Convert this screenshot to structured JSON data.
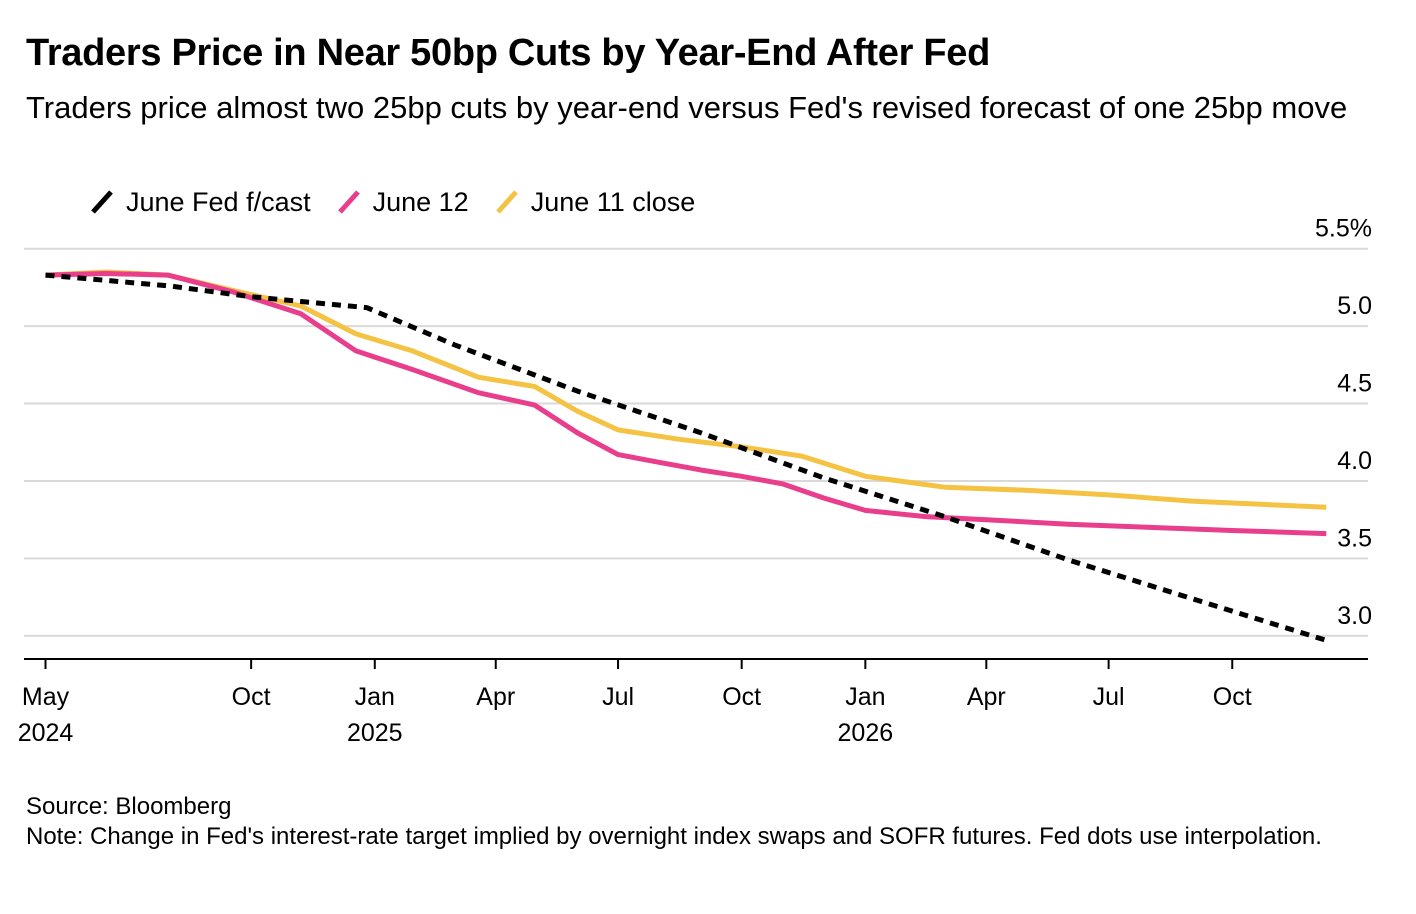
{
  "chart_data": {
    "type": "line",
    "title": "Traders Price in Near 50bp Cuts by Year-End After Fed",
    "subtitle": "Traders price almost two 25bp cuts by year-end versus Fed's revised forecast of one 25bp move",
    "ylabel": "",
    "xlabel": "",
    "y_unit": "%",
    "ylim": [
      2.85,
      5.55
    ],
    "yticks": [
      {
        "value": 5.5,
        "label": "5.5%"
      },
      {
        "value": 5.0,
        "label": "5.0"
      },
      {
        "value": 4.5,
        "label": "4.5"
      },
      {
        "value": 4.0,
        "label": "4.0"
      },
      {
        "value": 3.5,
        "label": "3.5"
      },
      {
        "value": 3.0,
        "label": "3.0"
      }
    ],
    "xlim": [
      "2024-04-15",
      "2027-01-10"
    ],
    "xticks": [
      {
        "date": "2024-05-01",
        "label": "May",
        "year": "2024"
      },
      {
        "date": "2024-10-01",
        "label": "Oct",
        "year": ""
      },
      {
        "date": "2025-01-01",
        "label": "Jan",
        "year": "2025"
      },
      {
        "date": "2025-04-01",
        "label": "Apr",
        "year": ""
      },
      {
        "date": "2025-07-01",
        "label": "Jul",
        "year": ""
      },
      {
        "date": "2025-10-01",
        "label": "Oct",
        "year": ""
      },
      {
        "date": "2026-01-01",
        "label": "Jan",
        "year": "2026"
      },
      {
        "date": "2026-04-01",
        "label": "Apr",
        "year": ""
      },
      {
        "date": "2026-07-01",
        "label": "Jul",
        "year": ""
      },
      {
        "date": "2026-10-01",
        "label": "Oct",
        "year": ""
      }
    ],
    "grid": true,
    "legend_position": "top-left",
    "series": [
      {
        "name": "June Fed f/cast",
        "color": "#000000",
        "dash": true,
        "points": [
          {
            "x": "2024-05-01",
            "y": 5.33
          },
          {
            "x": "2024-08-01",
            "y": 5.26
          },
          {
            "x": "2024-10-01",
            "y": 5.19
          },
          {
            "x": "2024-12-01",
            "y": 5.14
          },
          {
            "x": "2024-12-26",
            "y": 5.12
          },
          {
            "x": "2025-03-01",
            "y": 4.88
          },
          {
            "x": "2025-06-01",
            "y": 4.58
          },
          {
            "x": "2025-09-01",
            "y": 4.31
          },
          {
            "x": "2025-12-01",
            "y": 4.02
          },
          {
            "x": "2026-03-01",
            "y": 3.77
          },
          {
            "x": "2026-06-01",
            "y": 3.49
          },
          {
            "x": "2026-09-01",
            "y": 3.24
          },
          {
            "x": "2026-12-10",
            "y": 2.97
          }
        ]
      },
      {
        "name": "June 12",
        "color": "#e83e8c",
        "dash": false,
        "points": [
          {
            "x": "2024-05-01",
            "y": 5.33
          },
          {
            "x": "2024-06-15",
            "y": 5.34
          },
          {
            "x": "2024-07-31",
            "y": 5.33
          },
          {
            "x": "2024-09-18",
            "y": 5.22
          },
          {
            "x": "2024-11-07",
            "y": 5.08
          },
          {
            "x": "2024-12-18",
            "y": 4.84
          },
          {
            "x": "2025-01-29",
            "y": 4.72
          },
          {
            "x": "2025-03-19",
            "y": 4.57
          },
          {
            "x": "2025-04-30",
            "y": 4.49
          },
          {
            "x": "2025-06-01",
            "y": 4.31
          },
          {
            "x": "2025-07-01",
            "y": 4.17
          },
          {
            "x": "2025-08-01",
            "y": 4.12
          },
          {
            "x": "2025-09-01",
            "y": 4.07
          },
          {
            "x": "2025-10-01",
            "y": 4.03
          },
          {
            "x": "2025-11-01",
            "y": 3.98
          },
          {
            "x": "2025-12-01",
            "y": 3.89
          },
          {
            "x": "2026-01-01",
            "y": 3.81
          },
          {
            "x": "2026-02-15",
            "y": 3.77
          },
          {
            "x": "2026-04-01",
            "y": 3.75
          },
          {
            "x": "2026-06-01",
            "y": 3.72
          },
          {
            "x": "2026-08-01",
            "y": 3.7
          },
          {
            "x": "2026-10-01",
            "y": 3.68
          },
          {
            "x": "2026-12-10",
            "y": 3.66
          }
        ]
      },
      {
        "name": "June 11 close",
        "color": "#f5c343",
        "dash": false,
        "points": [
          {
            "x": "2024-05-01",
            "y": 5.33
          },
          {
            "x": "2024-06-15",
            "y": 5.35
          },
          {
            "x": "2024-07-31",
            "y": 5.33
          },
          {
            "x": "2024-09-18",
            "y": 5.23
          },
          {
            "x": "2024-11-07",
            "y": 5.13
          },
          {
            "x": "2024-12-18",
            "y": 4.95
          },
          {
            "x": "2025-01-29",
            "y": 4.84
          },
          {
            "x": "2025-03-19",
            "y": 4.67
          },
          {
            "x": "2025-04-30",
            "y": 4.61
          },
          {
            "x": "2025-06-01",
            "y": 4.45
          },
          {
            "x": "2025-07-01",
            "y": 4.33
          },
          {
            "x": "2025-08-15",
            "y": 4.27
          },
          {
            "x": "2025-10-01",
            "y": 4.22
          },
          {
            "x": "2025-11-15",
            "y": 4.16
          },
          {
            "x": "2026-01-01",
            "y": 4.03
          },
          {
            "x": "2026-03-01",
            "y": 3.96
          },
          {
            "x": "2026-05-01",
            "y": 3.94
          },
          {
            "x": "2026-07-01",
            "y": 3.91
          },
          {
            "x": "2026-09-01",
            "y": 3.87
          },
          {
            "x": "2026-12-10",
            "y": 3.83
          }
        ]
      }
    ]
  },
  "footer": {
    "source": "Source: Bloomberg",
    "note": "Note: Change in Fed's interest-rate target implied by overnight index swaps and SOFR futures. Fed dots use interpolation."
  }
}
